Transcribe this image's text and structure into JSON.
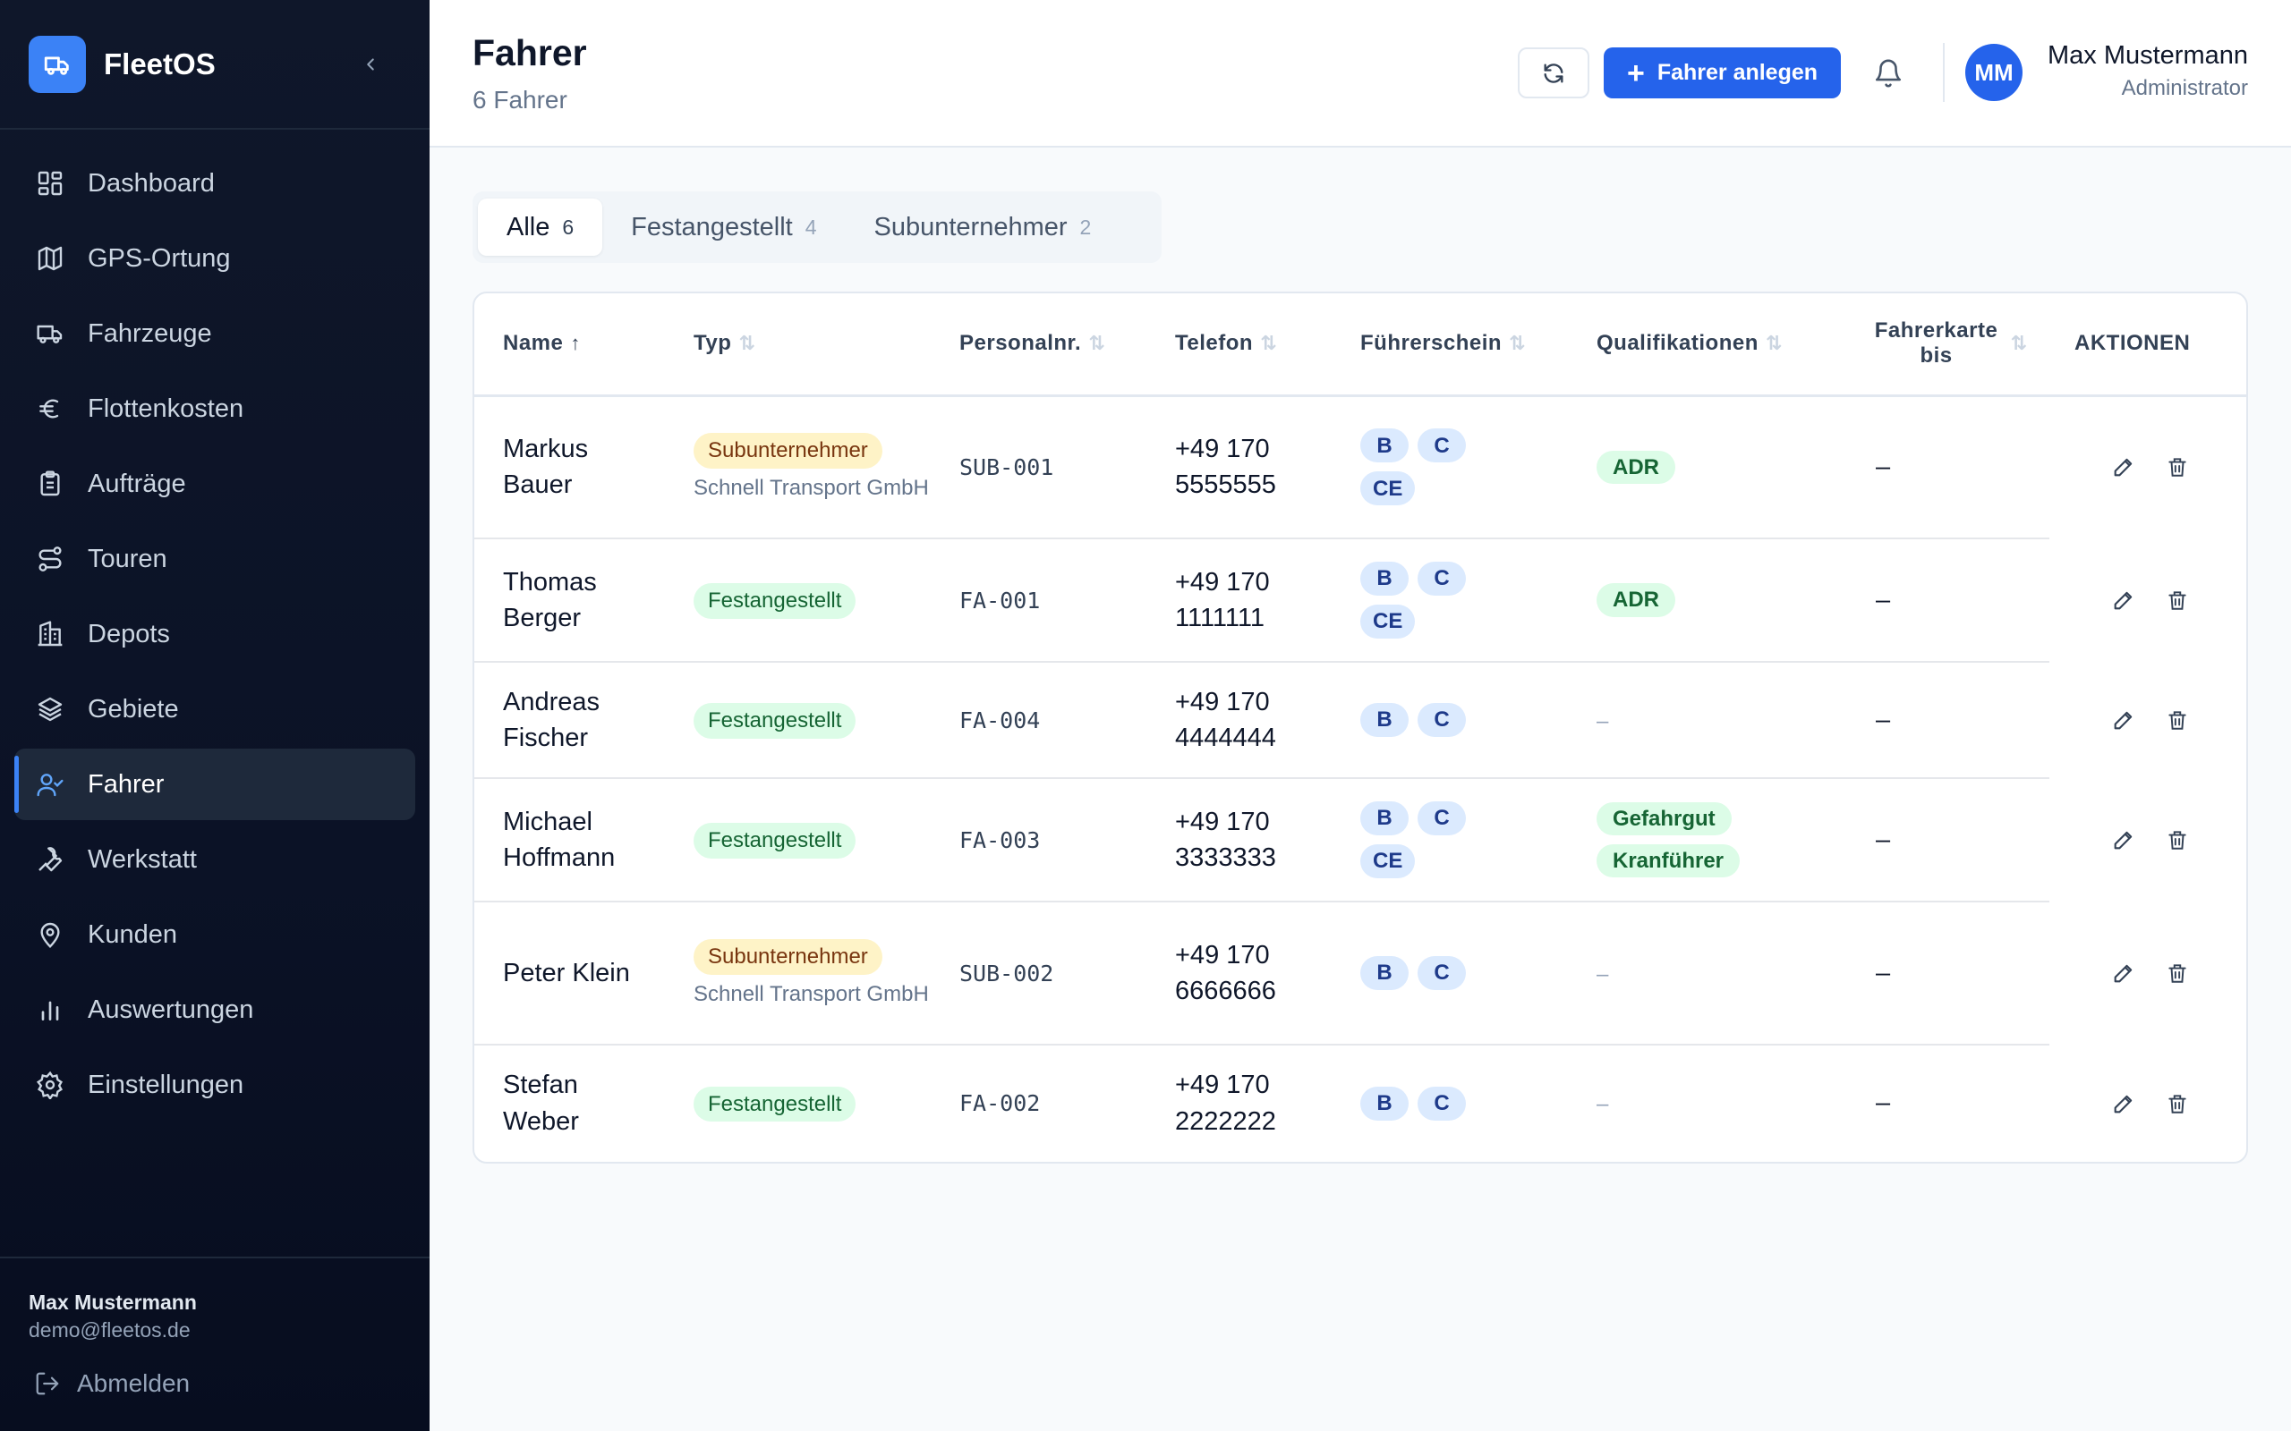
{
  "app": {
    "name": "FleetOS"
  },
  "sidebar": {
    "items": [
      {
        "label": "Dashboard",
        "icon": "dashboard-icon"
      },
      {
        "label": "GPS-Ortung",
        "icon": "map-icon"
      },
      {
        "label": "Fahrzeuge",
        "icon": "truck-icon"
      },
      {
        "label": "Flottenkosten",
        "icon": "euro-icon"
      },
      {
        "label": "Aufträge",
        "icon": "clipboard-icon"
      },
      {
        "label": "Touren",
        "icon": "route-icon"
      },
      {
        "label": "Depots",
        "icon": "building-icon"
      },
      {
        "label": "Gebiete",
        "icon": "layers-icon"
      },
      {
        "label": "Fahrer",
        "icon": "user-check-icon",
        "active": true
      },
      {
        "label": "Werkstatt",
        "icon": "wrench-icon"
      },
      {
        "label": "Kunden",
        "icon": "map-pin-icon"
      },
      {
        "label": "Auswertungen",
        "icon": "bar-chart-icon"
      },
      {
        "label": "Einstellungen",
        "icon": "settings-icon"
      }
    ],
    "footer": {
      "name": "Max Mustermann",
      "email": "demo@fleetos.de",
      "logout": "Abmelden"
    }
  },
  "header": {
    "title": "Fahrer",
    "subtitle": "6 Fahrer",
    "add_button": "Fahrer anlegen",
    "user_initials": "MM",
    "user_name": "Max Mustermann",
    "user_role": "Administrator"
  },
  "tabs": [
    {
      "label": "Alle",
      "count": "6",
      "active": true
    },
    {
      "label": "Festangestellt",
      "count": "4"
    },
    {
      "label": "Subunternehmer",
      "count": "2"
    }
  ],
  "table": {
    "columns": {
      "name": "Name",
      "typ": "Typ",
      "personalnr": "Personalnr.",
      "telefon": "Telefon",
      "fuehrerschein": "Führerschein",
      "qualifikationen": "Qualifikationen",
      "fahrerkarte": "Fahrerkarte bis",
      "aktionen": "AKTIONEN"
    },
    "rows": [
      {
        "name": "Markus Bauer",
        "type": "Subunternehmer",
        "type_kind": "sub",
        "company": "Schnell Transport GmbH",
        "personalnr": "SUB-001",
        "phone": "+49 170 5555555",
        "licenses": [
          "B",
          "C",
          "CE"
        ],
        "qualifications": [
          "ADR"
        ],
        "card": "–"
      },
      {
        "name": "Thomas Berger",
        "type": "Festangestellt",
        "type_kind": "fest",
        "company": "",
        "personalnr": "FA-001",
        "phone": "+49 170 1111111",
        "licenses": [
          "B",
          "C",
          "CE"
        ],
        "qualifications": [
          "ADR"
        ],
        "card": "–"
      },
      {
        "name": "Andreas Fischer",
        "type": "Festangestellt",
        "type_kind": "fest",
        "company": "",
        "personalnr": "FA-004",
        "phone": "+49 170 4444444",
        "licenses": [
          "B",
          "C"
        ],
        "qualifications": [],
        "card": "–"
      },
      {
        "name": "Michael Hoffmann",
        "type": "Festangestellt",
        "type_kind": "fest",
        "company": "",
        "personalnr": "FA-003",
        "phone": "+49 170 3333333",
        "licenses": [
          "B",
          "C",
          "CE"
        ],
        "qualifications": [
          "Gefahrgut",
          "Kranführer"
        ],
        "card": "–"
      },
      {
        "name": "Peter Klein",
        "type": "Subunternehmer",
        "type_kind": "sub",
        "company": "Schnell Transport GmbH",
        "personalnr": "SUB-002",
        "phone": "+49 170 6666666",
        "licenses": [
          "B",
          "C"
        ],
        "qualifications": [],
        "card": "–"
      },
      {
        "name": "Stefan Weber",
        "type": "Festangestellt",
        "type_kind": "fest",
        "company": "",
        "personalnr": "FA-002",
        "phone": "+49 170 2222222",
        "licenses": [
          "B",
          "C"
        ],
        "qualifications": [],
        "card": "–"
      }
    ],
    "empty_qual": "–"
  },
  "colors": {
    "accent": "#2563eb",
    "sidebar_bg": "#0f172a",
    "badge_sub": "#fef3c7",
    "badge_fest": "#dcfce7",
    "license": "#dbeafe"
  }
}
